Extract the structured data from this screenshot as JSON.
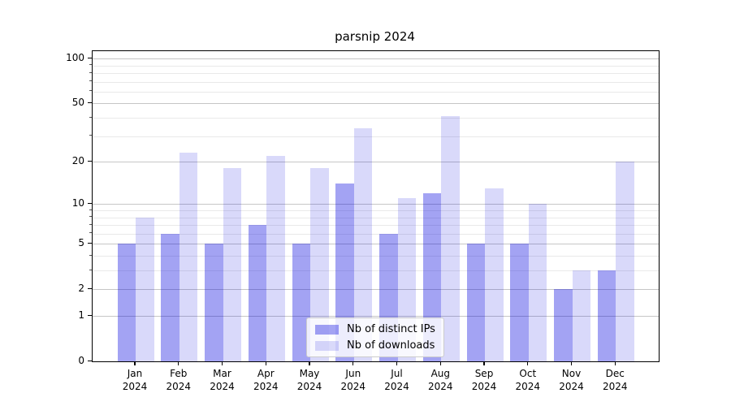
{
  "title": "parsnip 2024",
  "chart_data": {
    "type": "bar",
    "title": "parsnip 2024",
    "xlabel": "",
    "ylabel": "",
    "yscale": "log1p",
    "ylim": [
      0,
      114
    ],
    "grid": "major-and-minor",
    "legend_position": "lower-center",
    "yticks_major": [
      0,
      1,
      2,
      5,
      10,
      20,
      50,
      100
    ],
    "yticks_minor": [
      3,
      4,
      6,
      7,
      8,
      9,
      30,
      40,
      60,
      70,
      80,
      90
    ],
    "categories": [
      "Jan 2024",
      "Feb 2024",
      "Mar 2024",
      "Apr 2024",
      "May 2024",
      "Jun 2024",
      "Jul 2024",
      "Aug 2024",
      "Sep 2024",
      "Oct 2024",
      "Nov 2024",
      "Dec 2024"
    ],
    "series": [
      {
        "name": "Nb of distinct IPs",
        "color": "rgba(0,0,221,0.36)",
        "color_flat_hex": "#a3a3f3",
        "values": [
          5,
          6,
          5,
          7,
          5,
          14,
          6,
          12,
          5,
          5,
          2,
          3
        ]
      },
      {
        "name": "Nb of downloads",
        "color": "rgba(0,0,221,0.15)",
        "color_flat_hex": "#d9d9fa",
        "values": [
          8,
          23,
          18,
          22,
          18,
          34,
          11,
          41,
          13,
          10,
          3,
          20
        ]
      }
    ]
  },
  "colors": {
    "background": "#ffffff",
    "axis_spine": "#000000",
    "grid_major": "#c6c6c6",
    "grid_minor": "#e9e9e9",
    "legend_border": "#cccccc",
    "legend_background": "rgba(255,255,255,0.8)",
    "text": "#000000"
  }
}
